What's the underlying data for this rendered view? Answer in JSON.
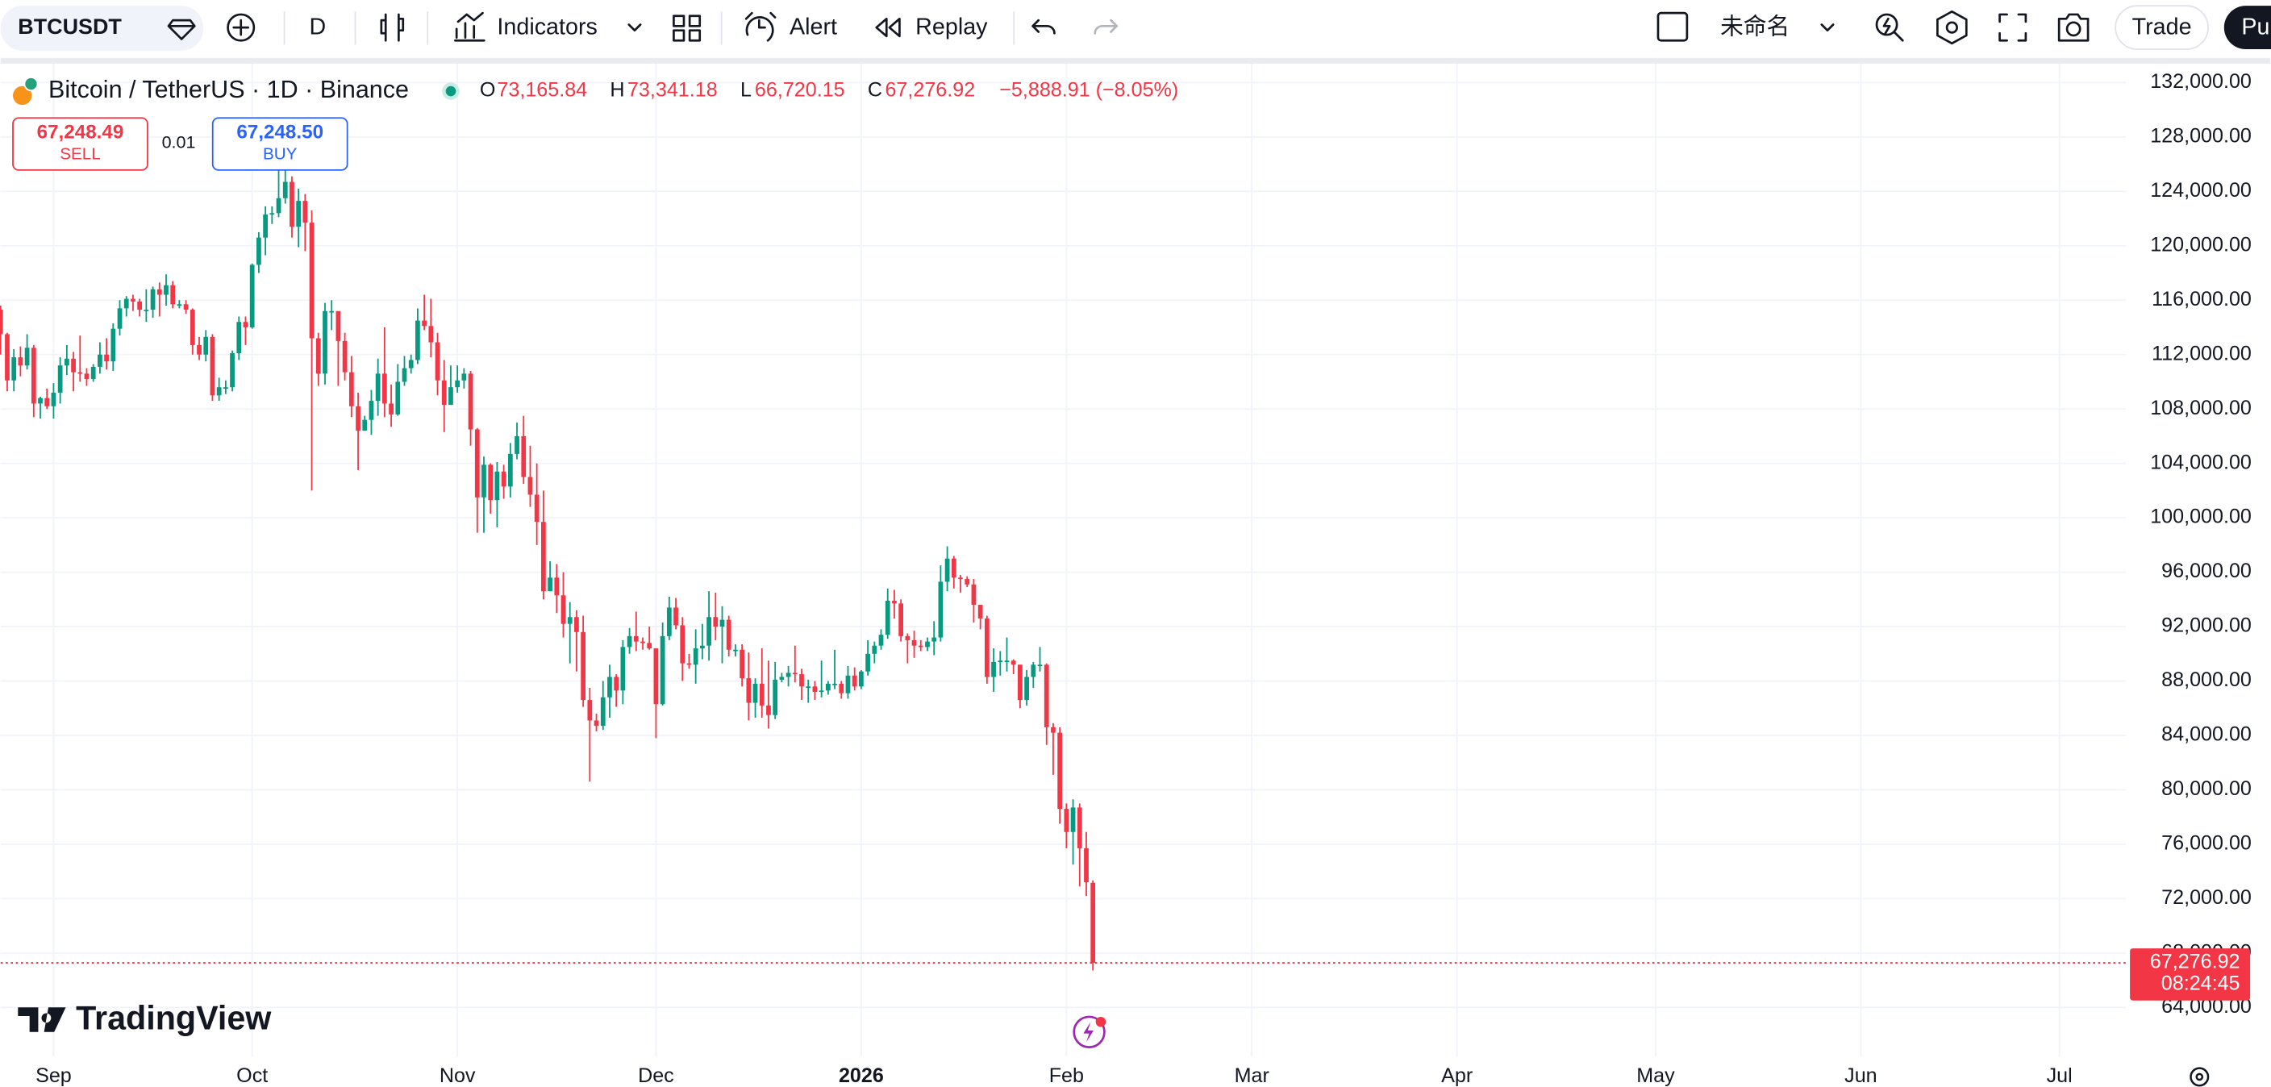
{
  "toolbar": {
    "symbol": "BTCUSDT",
    "interval": "D",
    "indicators": "Indicators",
    "alert": "Alert",
    "replay": "Replay",
    "layout_name": "未命名",
    "trade": "Trade",
    "publish": "Pu"
  },
  "legend": {
    "title": "Bitcoin / TetherUS · 1D · Binance",
    "open_key": "O",
    "open": "73,165.84",
    "high_key": "H",
    "high": "73,341.18",
    "low_key": "L",
    "low": "66,720.15",
    "close_key": "C",
    "close": "67,276.92",
    "change": "−5,888.91 (−8.05%)"
  },
  "order_panel": {
    "sell_price": "67,248.49",
    "sell": "SELL",
    "spread": "0.01",
    "buy_price": "67,248.50",
    "buy": "BUY"
  },
  "price_label": {
    "price": "67,276.92",
    "countdown": "08:24:45"
  },
  "brand": "TradingView",
  "chart_data": {
    "type": "candlestick",
    "up_color": "#089981",
    "down_color": "#f23645",
    "grid": true,
    "xlim": [
      0,
      321
    ],
    "ylim": [
      58150,
      133600
    ],
    "xticks": [
      {
        "value": 8,
        "label": "Sep"
      },
      {
        "value": 38,
        "label": "Oct"
      },
      {
        "value": 69,
        "label": "Nov"
      },
      {
        "value": 99,
        "label": "Dec"
      },
      {
        "value": 130,
        "label": "2026"
      },
      {
        "value": 161,
        "label": "Feb"
      },
      {
        "value": 189,
        "label": "Mar"
      },
      {
        "value": 220,
        "label": "Apr"
      },
      {
        "value": 250,
        "label": "May"
      },
      {
        "value": 281,
        "label": "Jun"
      },
      {
        "value": 311,
        "label": "Jul"
      }
    ],
    "yticks": [
      {
        "value": 64000,
        "label": "64,000.00"
      },
      {
        "value": 68000,
        "label": "68,000.00"
      },
      {
        "value": 72000,
        "label": "72,000.00"
      },
      {
        "value": 76000,
        "label": "76,000.00"
      },
      {
        "value": 80000,
        "label": "80,000.00"
      },
      {
        "value": 84000,
        "label": "84,000.00"
      },
      {
        "value": 88000,
        "label": "88,000.00"
      },
      {
        "value": 92000,
        "label": "92,000.00"
      },
      {
        "value": 96000,
        "label": "96,000.00"
      },
      {
        "value": 100000,
        "label": "100,000.00"
      },
      {
        "value": 104000,
        "label": "104,000.00"
      },
      {
        "value": 108000,
        "label": "108,000.00"
      },
      {
        "value": 112000,
        "label": "112,000.00"
      },
      {
        "value": 116000,
        "label": "116,000.00"
      },
      {
        "value": 120000,
        "label": "120,000.00"
      },
      {
        "value": 124000,
        "label": "124,000.00"
      },
      {
        "value": 128000,
        "label": "128,000.00"
      },
      {
        "value": 132000,
        "label": "132,000.00"
      }
    ],
    "x": [
      0,
      1,
      2,
      3,
      4,
      5,
      6,
      7,
      8,
      9,
      10,
      11,
      12,
      13,
      14,
      15,
      16,
      17,
      18,
      19,
      20,
      21,
      22,
      23,
      24,
      25,
      26,
      27,
      28,
      29,
      30,
      31,
      32,
      33,
      34,
      35,
      36,
      37,
      38,
      39,
      40,
      41,
      42,
      43,
      44,
      45,
      46,
      47,
      48,
      49,
      50,
      51,
      52,
      53,
      54,
      55,
      56,
      57,
      58,
      59,
      60,
      61,
      62,
      63,
      64,
      65,
      66,
      67,
      68,
      69,
      70,
      71,
      72,
      73,
      74,
      75,
      76,
      77,
      78,
      79,
      80,
      81,
      82,
      83,
      84,
      85,
      86,
      87,
      88,
      89,
      90,
      91,
      92,
      93,
      94,
      95,
      96,
      97,
      98,
      99,
      100,
      101,
      102,
      103,
      104,
      105,
      106,
      107,
      108,
      109,
      110,
      111,
      112,
      113,
      114,
      115,
      116,
      117,
      118,
      119,
      120,
      121,
      122,
      123,
      124,
      125,
      126,
      127,
      128,
      129,
      130,
      131,
      132,
      133,
      134,
      135,
      136,
      137,
      138,
      139,
      140,
      141,
      142,
      143,
      144,
      145,
      146,
      147,
      148,
      149,
      150,
      151,
      152,
      153,
      154,
      155,
      156,
      157,
      158,
      159,
      160,
      161,
      162,
      163,
      164,
      165
    ],
    "open": [
      115300,
      113500,
      110100,
      111800,
      111200,
      112500,
      108400,
      108800,
      108200,
      109200,
      111200,
      111700,
      110700,
      110600,
      110200,
      111100,
      112000,
      111500,
      113900,
      115400,
      116100,
      115900,
      115300,
      115300,
      116800,
      116400,
      117100,
      115700,
      115700,
      115300,
      112700,
      112000,
      113300,
      109000,
      109600,
      109600,
      112100,
      114400,
      114000,
      118600,
      120600,
      122300,
      122400,
      123500,
      124700,
      121400,
      123300,
      121700,
      113200,
      110600,
      115200,
      115200,
      113000,
      110700,
      108200,
      106400,
      107200,
      108600,
      110600,
      108400,
      107600,
      110000,
      111000,
      111600,
      114500,
      114100,
      112900,
      110100,
      108300,
      109600,
      110100,
      110600,
      106500,
      101500,
      103900,
      101300,
      103400,
      102300,
      104700,
      106000,
      103000,
      101700,
      99700,
      94600,
      95600,
      94300,
      92200,
      92700,
      91600,
      86600,
      85100,
      84700,
      86800,
      88300,
      87300,
      90500,
      91300,
      90900,
      90800,
      90400,
      86300,
      91300,
      93400,
      92100,
      89300,
      89200,
      90400,
      90600,
      92700,
      92000,
      92500,
      90300,
      90300,
      88200,
      86400,
      87800,
      86200,
      85500,
      88100,
      88300,
      88600,
      88500,
      87600,
      87600,
      87200,
      87300,
      87800,
      87800,
      87100,
      88400,
      87600,
      88700,
      90000,
      90600,
      91400,
      93900,
      93700,
      91300,
      91000,
      90600,
      90500,
      90900,
      91200,
      95300,
      97000,
      95600,
      95500,
      95100,
      93600,
      92600,
      88300,
      89400,
      89500,
      89500,
      89200,
      86600,
      88300,
      89200,
      89200,
      84600,
      84200,
      78600,
      76900,
      78700,
      75700,
      73165.84
    ],
    "high": [
      115600,
      113600,
      112400,
      112600,
      113500,
      112700,
      108900,
      109500,
      109900,
      111800,
      112700,
      112200,
      113400,
      111000,
      111300,
      112900,
      113200,
      114300,
      116000,
      116300,
      116400,
      116100,
      116800,
      117000,
      117300,
      117900,
      117400,
      116000,
      116000,
      115400,
      113300,
      113800,
      113500,
      110300,
      110100,
      112300,
      114800,
      114800,
      118700,
      121000,
      122900,
      122900,
      125700,
      126200,
      125100,
      124200,
      123800,
      122600,
      113600,
      115800,
      116000,
      115100,
      113600,
      111900,
      109200,
      107500,
      109400,
      111700,
      114000,
      109800,
      111300,
      111900,
      112000,
      115400,
      116400,
      116100,
      113600,
      111600,
      111200,
      111200,
      111000,
      110800,
      106600,
      104500,
      104000,
      104100,
      103900,
      105500,
      107000,
      107500,
      105300,
      104000,
      102000,
      96800,
      96600,
      96000,
      93800,
      93200,
      92800,
      87500,
      85600,
      88000,
      89200,
      88500,
      91000,
      91900,
      93100,
      91200,
      92000,
      90400,
      92300,
      94200,
      94100,
      92700,
      90000,
      91800,
      92200,
      94600,
      94500,
      93500,
      92800,
      90700,
      90700,
      90100,
      88200,
      90400,
      89500,
      89400,
      88600,
      89100,
      90600,
      88900,
      88100,
      88000,
      89500,
      88000,
      90300,
      88000,
      89100,
      89000,
      88800,
      91000,
      90900,
      91800,
      94800,
      94700,
      94000,
      91500,
      91700,
      91000,
      91200,
      92400,
      96500,
      97900,
      97200,
      95800,
      95700,
      95500,
      93600,
      92800,
      90400,
      90200,
      91200,
      89600,
      89200,
      88800,
      89400,
      90500,
      89300,
      84900,
      84600,
      79000,
      79300,
      79000,
      76900,
      73341.18
    ],
    "low": [
      112000,
      109300,
      109300,
      110400,
      110900,
      107400,
      107300,
      108000,
      107300,
      108400,
      110500,
      109300,
      110000,
      109700,
      110000,
      110600,
      110900,
      110800,
      113400,
      114800,
      115200,
      114800,
      114400,
      114700,
      114800,
      115600,
      115400,
      115400,
      115000,
      112000,
      111600,
      111500,
      108600,
      108600,
      109100,
      109300,
      111600,
      112700,
      113900,
      118000,
      119300,
      121600,
      122100,
      123100,
      120600,
      119900,
      119600,
      102000,
      109700,
      109800,
      113800,
      109700,
      110100,
      107400,
      103500,
      106400,
      106100,
      107500,
      107400,
      106700,
      107500,
      109700,
      110600,
      111300,
      113800,
      111800,
      109000,
      106300,
      108300,
      109200,
      109500,
      105300,
      98900,
      98900,
      100300,
      99300,
      101400,
      101500,
      104300,
      102500,
      100800,
      98000,
      94000,
      94600,
      93000,
      91200,
      89300,
      88700,
      86100,
      80600,
      84300,
      84400,
      85300,
      86100,
      86300,
      90000,
      90200,
      90300,
      90300,
      83800,
      86200,
      91000,
      91800,
      88000,
      88900,
      87800,
      89600,
      89500,
      91000,
      89300,
      89800,
      89800,
      87600,
      85100,
      85300,
      85300,
      84500,
      85200,
      87900,
      87600,
      87900,
      86600,
      86400,
      86600,
      86800,
      87000,
      87400,
      86700,
      86700,
      87300,
      87400,
      88400,
      89300,
      90300,
      91100,
      92600,
      90900,
      89300,
      89700,
      90200,
      90200,
      89900,
      90900,
      94600,
      94800,
      94500,
      94900,
      92300,
      91800,
      87800,
      87200,
      88400,
      88700,
      88500,
      86000,
      86200,
      87500,
      88700,
      83300,
      81100,
      77500,
      75700,
      74500,
      72900,
      72200,
      66720.15
    ],
    "close": [
      113500,
      110100,
      111800,
      111200,
      112500,
      108400,
      108800,
      108200,
      109200,
      111200,
      111700,
      110700,
      110600,
      110200,
      111100,
      112000,
      111500,
      113900,
      115400,
      116100,
      115900,
      115300,
      115300,
      116800,
      116400,
      117100,
      115700,
      115700,
      115300,
      112700,
      112000,
      113300,
      109000,
      109600,
      109600,
      112100,
      114400,
      114000,
      118600,
      120600,
      122300,
      122400,
      123500,
      124700,
      121400,
      123300,
      121700,
      113200,
      110600,
      115200,
      115200,
      113000,
      110700,
      108200,
      106400,
      107200,
      108600,
      110600,
      108400,
      107600,
      110000,
      111000,
      111600,
      114500,
      114100,
      112900,
      110100,
      108300,
      109600,
      110100,
      110600,
      106500,
      101500,
      103900,
      101300,
      103400,
      102300,
      104700,
      106000,
      103000,
      101700,
      99700,
      94600,
      95600,
      94300,
      92200,
      92700,
      91600,
      86600,
      85100,
      84700,
      86800,
      88300,
      87300,
      90500,
      91300,
      90900,
      90800,
      90400,
      86300,
      91300,
      93400,
      92100,
      89300,
      89200,
      90400,
      90600,
      92700,
      92000,
      92500,
      90300,
      90300,
      88200,
      86400,
      87800,
      86200,
      85500,
      88100,
      88300,
      88600,
      88500,
      87600,
      87600,
      87200,
      87300,
      87800,
      87800,
      87100,
      88400,
      87600,
      88700,
      90000,
      90600,
      91400,
      93900,
      93700,
      91300,
      91000,
      90600,
      90500,
      90900,
      91200,
      95300,
      97000,
      95600,
      95500,
      95100,
      93600,
      92600,
      88300,
      89400,
      89500,
      89500,
      89200,
      86600,
      88300,
      89200,
      89200,
      84600,
      84200,
      78600,
      76900,
      78700,
      75700,
      73200,
      67276.92
    ]
  }
}
